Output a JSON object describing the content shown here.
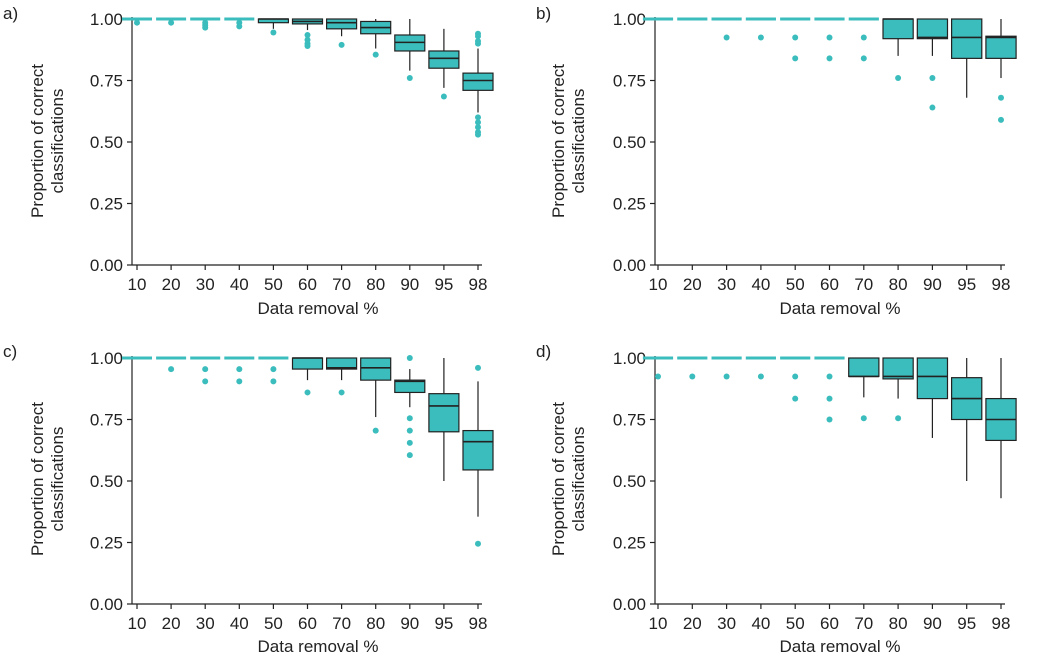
{
  "colors": {
    "box_fill": "#3cbdbd",
    "outlier": "#3cbdbd",
    "line": "#222222"
  },
  "chart_data": [
    {
      "panel": "a)",
      "type": "boxplot",
      "ylabel_line1": "Proportion of correct",
      "ylabel_line2": "classifications",
      "xlabel": "Data removal %",
      "ylim": [
        0,
        1
      ],
      "yticks": [
        "0.00",
        "0.25",
        "0.50",
        "0.75",
        "1.00"
      ],
      "categories": [
        "10",
        "20",
        "30",
        "40",
        "50",
        "60",
        "70",
        "80",
        "90",
        "95",
        "98"
      ],
      "boxes": [
        {
          "q1": 1.0,
          "med": 1.0,
          "q3": 1.0,
          "lo": 1.0,
          "hi": 1.0,
          "out": [
            0.985
          ]
        },
        {
          "q1": 1.0,
          "med": 1.0,
          "q3": 1.0,
          "lo": 1.0,
          "hi": 1.0,
          "out": [
            0.985
          ]
        },
        {
          "q1": 1.0,
          "med": 1.0,
          "q3": 1.0,
          "lo": 1.0,
          "hi": 1.0,
          "out": [
            0.985,
            0.975,
            0.965
          ]
        },
        {
          "q1": 1.0,
          "med": 1.0,
          "q3": 1.0,
          "lo": 1.0,
          "hi": 1.0,
          "out": [
            0.985,
            0.97
          ]
        },
        {
          "q1": 0.985,
          "med": 1.0,
          "q3": 1.0,
          "lo": 0.96,
          "hi": 1.0,
          "out": [
            0.945
          ]
        },
        {
          "q1": 0.98,
          "med": 0.99,
          "q3": 1.0,
          "lo": 0.955,
          "hi": 1.0,
          "out": [
            0.935,
            0.915,
            0.9,
            0.89
          ]
        },
        {
          "q1": 0.96,
          "med": 0.985,
          "q3": 1.0,
          "lo": 0.93,
          "hi": 1.0,
          "out": [
            0.895
          ]
        },
        {
          "q1": 0.94,
          "med": 0.965,
          "q3": 0.99,
          "lo": 0.88,
          "hi": 1.0,
          "out": [
            0.855
          ]
        },
        {
          "q1": 0.87,
          "med": 0.905,
          "q3": 0.935,
          "lo": 0.79,
          "hi": 1.0,
          "out": [
            0.76
          ]
        },
        {
          "q1": 0.8,
          "med": 0.84,
          "q3": 0.87,
          "lo": 0.72,
          "hi": 0.96,
          "out": [
            0.685
          ]
        },
        {
          "q1": 0.71,
          "med": 0.75,
          "q3": 0.78,
          "lo": 0.62,
          "hi": 0.88,
          "out": [
            0.94,
            0.93,
            0.91,
            0.9,
            0.6,
            0.58,
            0.56,
            0.54,
            0.53
          ]
        }
      ]
    },
    {
      "panel": "b)",
      "type": "boxplot",
      "ylabel_line1": "Proportion of correct",
      "ylabel_line2": "classifications",
      "xlabel": "Data removal %",
      "ylim": [
        0,
        1
      ],
      "yticks": [
        "0.00",
        "0.25",
        "0.50",
        "0.75",
        "1.00"
      ],
      "categories": [
        "10",
        "20",
        "30",
        "40",
        "50",
        "60",
        "70",
        "80",
        "90",
        "95",
        "98"
      ],
      "boxes": [
        {
          "q1": 1.0,
          "med": 1.0,
          "q3": 1.0,
          "lo": 1.0,
          "hi": 1.0,
          "out": []
        },
        {
          "q1": 1.0,
          "med": 1.0,
          "q3": 1.0,
          "lo": 1.0,
          "hi": 1.0,
          "out": []
        },
        {
          "q1": 1.0,
          "med": 1.0,
          "q3": 1.0,
          "lo": 1.0,
          "hi": 1.0,
          "out": [
            0.925
          ]
        },
        {
          "q1": 1.0,
          "med": 1.0,
          "q3": 1.0,
          "lo": 1.0,
          "hi": 1.0,
          "out": [
            0.925
          ]
        },
        {
          "q1": 1.0,
          "med": 1.0,
          "q3": 1.0,
          "lo": 1.0,
          "hi": 1.0,
          "out": [
            0.925,
            0.84
          ]
        },
        {
          "q1": 1.0,
          "med": 1.0,
          "q3": 1.0,
          "lo": 1.0,
          "hi": 1.0,
          "out": [
            0.925,
            0.84
          ]
        },
        {
          "q1": 1.0,
          "med": 1.0,
          "q3": 1.0,
          "lo": 1.0,
          "hi": 1.0,
          "out": [
            0.925,
            0.84
          ]
        },
        {
          "q1": 0.92,
          "med": 1.0,
          "q3": 1.0,
          "lo": 0.85,
          "hi": 1.0,
          "out": [
            0.76
          ]
        },
        {
          "q1": 0.92,
          "med": 0.925,
          "q3": 1.0,
          "lo": 0.85,
          "hi": 1.0,
          "out": [
            0.76,
            0.64
          ]
        },
        {
          "q1": 0.84,
          "med": 0.925,
          "q3": 1.0,
          "lo": 0.68,
          "hi": 1.0,
          "out": []
        },
        {
          "q1": 0.84,
          "med": 0.925,
          "q3": 0.93,
          "lo": 0.76,
          "hi": 1.0,
          "out": [
            0.68,
            0.59
          ]
        }
      ]
    },
    {
      "panel": "c)",
      "type": "boxplot",
      "ylabel_line1": "Proportion of correct",
      "ylabel_line2": "classifications",
      "xlabel": "Data removal %",
      "ylim": [
        0,
        1
      ],
      "yticks": [
        "0.00",
        "0.25",
        "0.50",
        "0.75",
        "1.00"
      ],
      "categories": [
        "10",
        "20",
        "30",
        "40",
        "50",
        "60",
        "70",
        "80",
        "90",
        "95",
        "98"
      ],
      "boxes": [
        {
          "q1": 1.0,
          "med": 1.0,
          "q3": 1.0,
          "lo": 1.0,
          "hi": 1.0,
          "out": []
        },
        {
          "q1": 1.0,
          "med": 1.0,
          "q3": 1.0,
          "lo": 1.0,
          "hi": 1.0,
          "out": [
            0.955
          ]
        },
        {
          "q1": 1.0,
          "med": 1.0,
          "q3": 1.0,
          "lo": 1.0,
          "hi": 1.0,
          "out": [
            0.955,
            0.905
          ]
        },
        {
          "q1": 1.0,
          "med": 1.0,
          "q3": 1.0,
          "lo": 1.0,
          "hi": 1.0,
          "out": [
            0.955,
            0.905
          ]
        },
        {
          "q1": 1.0,
          "med": 1.0,
          "q3": 1.0,
          "lo": 1.0,
          "hi": 1.0,
          "out": [
            0.955,
            0.905
          ]
        },
        {
          "q1": 0.955,
          "med": 1.0,
          "q3": 1.0,
          "lo": 0.91,
          "hi": 1.0,
          "out": [
            0.86
          ]
        },
        {
          "q1": 0.955,
          "med": 0.96,
          "q3": 1.0,
          "lo": 0.91,
          "hi": 1.0,
          "out": [
            0.86
          ]
        },
        {
          "q1": 0.91,
          "med": 0.96,
          "q3": 1.0,
          "lo": 0.76,
          "hi": 1.0,
          "out": [
            0.705
          ]
        },
        {
          "q1": 0.86,
          "med": 0.905,
          "q3": 0.91,
          "lo": 0.8,
          "hi": 0.955,
          "out": [
            1.0,
            0.755,
            0.705,
            0.655,
            0.605
          ]
        },
        {
          "q1": 0.7,
          "med": 0.805,
          "q3": 0.855,
          "lo": 0.5,
          "hi": 1.0,
          "out": []
        },
        {
          "q1": 0.545,
          "med": 0.66,
          "q3": 0.705,
          "lo": 0.355,
          "hi": 0.905,
          "out": [
            0.96,
            0.245
          ]
        }
      ]
    },
    {
      "panel": "d)",
      "type": "boxplot",
      "ylabel_line1": "Proportion of correct",
      "ylabel_line2": "classifications",
      "xlabel": "Data removal %",
      "ylim": [
        0,
        1
      ],
      "yticks": [
        "0.00",
        "0.25",
        "0.50",
        "0.75",
        "1.00"
      ],
      "categories": [
        "10",
        "20",
        "30",
        "40",
        "50",
        "60",
        "70",
        "80",
        "90",
        "95",
        "98"
      ],
      "boxes": [
        {
          "q1": 1.0,
          "med": 1.0,
          "q3": 1.0,
          "lo": 1.0,
          "hi": 1.0,
          "out": [
            0.925
          ]
        },
        {
          "q1": 1.0,
          "med": 1.0,
          "q3": 1.0,
          "lo": 1.0,
          "hi": 1.0,
          "out": [
            0.925
          ]
        },
        {
          "q1": 1.0,
          "med": 1.0,
          "q3": 1.0,
          "lo": 1.0,
          "hi": 1.0,
          "out": [
            0.925
          ]
        },
        {
          "q1": 1.0,
          "med": 1.0,
          "q3": 1.0,
          "lo": 1.0,
          "hi": 1.0,
          "out": [
            0.925
          ]
        },
        {
          "q1": 1.0,
          "med": 1.0,
          "q3": 1.0,
          "lo": 1.0,
          "hi": 1.0,
          "out": [
            0.925,
            0.835
          ]
        },
        {
          "q1": 1.0,
          "med": 1.0,
          "q3": 1.0,
          "lo": 1.0,
          "hi": 1.0,
          "out": [
            0.925,
            0.835,
            0.75
          ]
        },
        {
          "q1": 0.925,
          "med": 0.925,
          "q3": 1.0,
          "lo": 0.84,
          "hi": 1.0,
          "out": [
            0.755
          ]
        },
        {
          "q1": 0.915,
          "med": 0.925,
          "q3": 1.0,
          "lo": 0.835,
          "hi": 1.0,
          "out": [
            0.755
          ]
        },
        {
          "q1": 0.835,
          "med": 0.925,
          "q3": 1.0,
          "lo": 0.675,
          "hi": 1.0,
          "out": []
        },
        {
          "q1": 0.75,
          "med": 0.835,
          "q3": 0.92,
          "lo": 0.5,
          "hi": 1.0,
          "out": []
        },
        {
          "q1": 0.665,
          "med": 0.75,
          "q3": 0.835,
          "lo": 0.43,
          "hi": 1.0,
          "out": []
        }
      ]
    }
  ]
}
